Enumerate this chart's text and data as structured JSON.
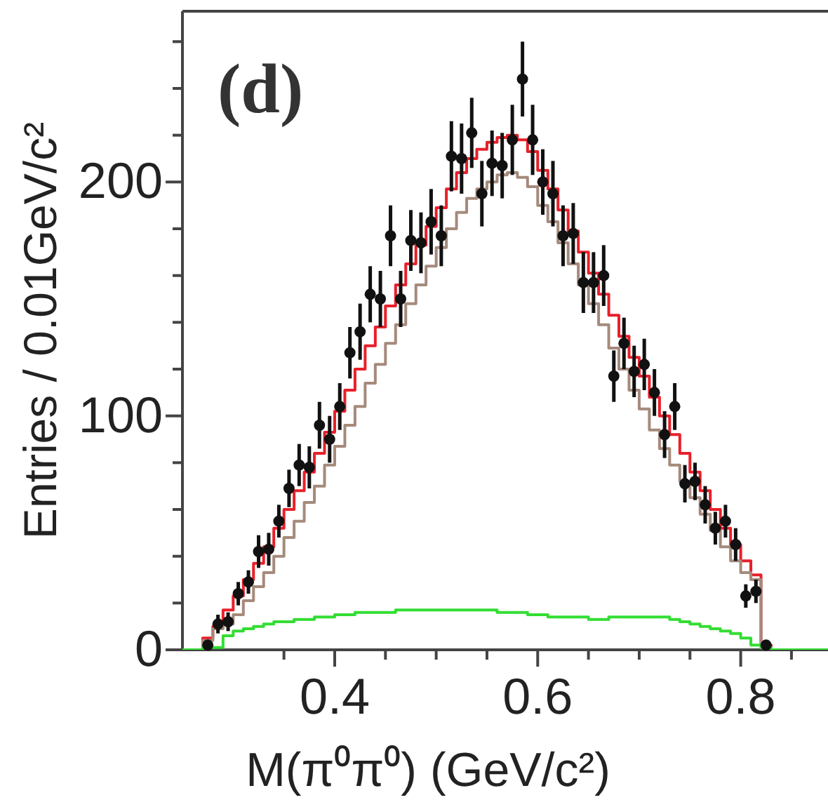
{
  "chart_data": {
    "type": "scatter",
    "xlabel": "M(π⁰π⁰) (GeV/c²)",
    "ylabel": "Entries / 0.01GeV/c²",
    "annotations": [
      "(d)"
    ],
    "xlim": [
      0.25,
      0.886
    ],
    "ylim": [
      0,
      273
    ],
    "xticks": [
      {
        "value": 0.35,
        "label": null
      },
      0.4,
      {
        "value": 0.45,
        "label": null
      },
      {
        "value": 0.5,
        "label": null
      },
      {
        "value": 0.55,
        "label": null
      },
      0.6,
      {
        "value": 0.65,
        "label": null
      },
      {
        "value": 0.7,
        "label": null
      },
      {
        "value": 0.75,
        "label": null
      },
      0.8,
      {
        "value": 0.85,
        "label": null
      }
    ],
    "yticks": [
      0,
      {
        "value": 20,
        "label": null
      },
      {
        "value": 40,
        "label": null
      },
      {
        "value": 60,
        "label": null
      },
      {
        "value": 80,
        "label": null
      },
      100,
      {
        "value": 120,
        "label": null
      },
      {
        "value": 140,
        "label": null
      },
      {
        "value": 160,
        "label": null
      },
      {
        "value": 180,
        "label": null
      },
      200,
      {
        "value": 220,
        "label": null
      },
      {
        "value": 240,
        "label": null
      },
      {
        "value": 260,
        "label": null
      }
    ],
    "grid": false,
    "marker": "circle",
    "line_style": "solid",
    "series": [
      {
        "type": "scatter",
        "color": "#111111",
        "x": [
          0.275,
          0.285,
          0.295,
          0.305,
          0.315,
          0.325,
          0.335,
          0.345,
          0.355,
          0.365,
          0.375,
          0.385,
          0.395,
          0.405,
          0.415,
          0.425,
          0.435,
          0.445,
          0.455,
          0.465,
          0.475,
          0.485,
          0.495,
          0.505,
          0.515,
          0.525,
          0.535,
          0.545,
          0.555,
          0.565,
          0.575,
          0.585,
          0.595,
          0.605,
          0.615,
          0.625,
          0.635,
          0.645,
          0.655,
          0.665,
          0.675,
          0.685,
          0.695,
          0.705,
          0.715,
          0.725,
          0.735,
          0.745,
          0.755,
          0.765,
          0.775,
          0.785,
          0.795,
          0.805,
          0.815,
          0.825
        ],
        "values": [
          2,
          11,
          12,
          24,
          29,
          42,
          43,
          55,
          69,
          79,
          78,
          96,
          90,
          104,
          127,
          136,
          152,
          150,
          177,
          150,
          175,
          174,
          183,
          177,
          211,
          210,
          221,
          195,
          208,
          207,
          218,
          244,
          218,
          200,
          195,
          177,
          178,
          157,
          157,
          160,
          117,
          131,
          119,
          122,
          110,
          92,
          104,
          71,
          72,
          62,
          52,
          55,
          45,
          23,
          25,
          2
        ],
        "errors": [
          2,
          4,
          4,
          5,
          5,
          7,
          7,
          7,
          8,
          9,
          9,
          10,
          10,
          10,
          11,
          12,
          12,
          12,
          13,
          12,
          13,
          13,
          14,
          13,
          15,
          15,
          15,
          14,
          14,
          14,
          15,
          16,
          15,
          14,
          14,
          13,
          13,
          13,
          13,
          13,
          11,
          11,
          11,
          11,
          10,
          10,
          10,
          8,
          8,
          8,
          7,
          7,
          7,
          5,
          5,
          2
        ]
      },
      {
        "type": "step",
        "marker": "none",
        "color": "#e8202a",
        "x": [
          0.25,
          0.27,
          0.28,
          0.29,
          0.3,
          0.31,
          0.32,
          0.33,
          0.34,
          0.35,
          0.36,
          0.37,
          0.38,
          0.39,
          0.4,
          0.41,
          0.42,
          0.43,
          0.44,
          0.45,
          0.46,
          0.47,
          0.48,
          0.49,
          0.5,
          0.51,
          0.52,
          0.53,
          0.54,
          0.55,
          0.56,
          0.57,
          0.58,
          0.59,
          0.6,
          0.61,
          0.62,
          0.63,
          0.64,
          0.65,
          0.66,
          0.67,
          0.68,
          0.69,
          0.7,
          0.71,
          0.72,
          0.73,
          0.74,
          0.75,
          0.76,
          0.77,
          0.78,
          0.79,
          0.8,
          0.81,
          0.82,
          0.83,
          0.886
        ],
        "values": [
          0,
          5,
          10,
          17,
          23,
          30,
          37,
          44,
          52,
          60,
          68,
          76,
          84,
          93,
          102,
          111,
          120,
          130,
          138,
          147,
          156,
          165,
          173,
          181,
          189,
          197,
          204,
          210,
          214,
          217,
          219,
          220,
          218,
          213,
          205,
          197,
          188,
          179,
          170,
          161,
          152,
          143,
          134,
          125,
          117,
          108,
          100,
          92,
          84,
          76,
          68,
          60,
          52,
          45,
          38,
          32,
          2,
          0,
          0
        ]
      },
      {
        "type": "step",
        "marker": "none",
        "color": "#a58a7c",
        "x": [
          0.25,
          0.27,
          0.28,
          0.29,
          0.3,
          0.31,
          0.32,
          0.33,
          0.34,
          0.35,
          0.36,
          0.37,
          0.38,
          0.39,
          0.4,
          0.41,
          0.42,
          0.43,
          0.44,
          0.45,
          0.46,
          0.47,
          0.48,
          0.49,
          0.5,
          0.51,
          0.52,
          0.53,
          0.54,
          0.55,
          0.56,
          0.57,
          0.58,
          0.59,
          0.6,
          0.61,
          0.62,
          0.63,
          0.64,
          0.65,
          0.66,
          0.67,
          0.68,
          0.69,
          0.7,
          0.71,
          0.72,
          0.73,
          0.74,
          0.75,
          0.76,
          0.77,
          0.78,
          0.79,
          0.8,
          0.81,
          0.82,
          0.83,
          0.886
        ],
        "values": [
          0,
          4,
          9,
          11,
          15,
          21,
          27,
          33,
          40,
          48,
          55,
          63,
          70,
          79,
          87,
          96,
          104,
          114,
          122,
          131,
          139,
          148,
          156,
          164,
          172,
          180,
          187,
          193,
          197,
          200,
          203,
          204,
          202,
          198,
          190,
          183,
          174,
          165,
          156,
          148,
          139,
          129,
          120,
          111,
          103,
          94,
          86,
          79,
          72,
          65,
          58,
          51,
          44,
          38,
          33,
          30,
          1,
          0,
          0
        ]
      },
      {
        "type": "step",
        "marker": "none",
        "color": "#33dd33",
        "x": [
          0.25,
          0.27,
          0.28,
          0.29,
          0.3,
          0.31,
          0.32,
          0.33,
          0.34,
          0.35,
          0.36,
          0.37,
          0.38,
          0.39,
          0.4,
          0.41,
          0.42,
          0.43,
          0.44,
          0.45,
          0.46,
          0.47,
          0.48,
          0.49,
          0.5,
          0.51,
          0.52,
          0.53,
          0.54,
          0.55,
          0.56,
          0.57,
          0.58,
          0.59,
          0.6,
          0.61,
          0.62,
          0.63,
          0.64,
          0.65,
          0.66,
          0.67,
          0.68,
          0.69,
          0.7,
          0.71,
          0.72,
          0.73,
          0.74,
          0.75,
          0.76,
          0.77,
          0.78,
          0.79,
          0.8,
          0.81,
          0.82,
          0.83,
          0.886
        ],
        "values": [
          0,
          1,
          1,
          6,
          8,
          9,
          10,
          11,
          12,
          12,
          13,
          13,
          14,
          14,
          15,
          15,
          16,
          16,
          16,
          16,
          17,
          17,
          17,
          17,
          17,
          17,
          17,
          17,
          17,
          17,
          16,
          16,
          16,
          15,
          15,
          14,
          14,
          14,
          14,
          13,
          13,
          14,
          14,
          14,
          14,
          14,
          14,
          13,
          12,
          11,
          10,
          9,
          8,
          7,
          5,
          2,
          1,
          0,
          0
        ]
      }
    ]
  }
}
